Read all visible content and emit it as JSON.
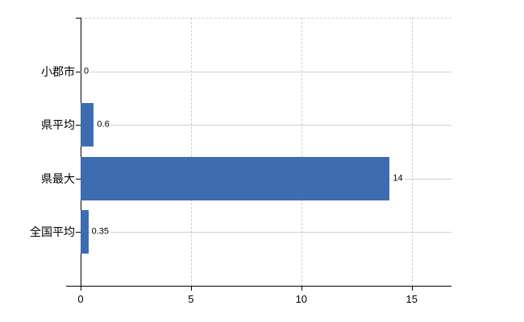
{
  "chart_data": {
    "type": "bar",
    "orientation": "horizontal",
    "categories": [
      "小郡市",
      "県平均",
      "県最大",
      "全国平均"
    ],
    "values": [
      0,
      0.6,
      14,
      0.35
    ],
    "value_labels": [
      "0",
      "0.6",
      "14",
      "0.35"
    ],
    "x_ticks": [
      0,
      5,
      10,
      15
    ],
    "x_tick_labels": [
      "0",
      "5",
      "10",
      "15"
    ],
    "xlim": [
      0,
      16.8
    ],
    "grid": true,
    "legend": false,
    "colors": {
      "bar": "#3e6cb1",
      "axis": "#000000",
      "gridline": "#cfcfcf",
      "text": "#000000",
      "background": "#ffffff"
    }
  }
}
